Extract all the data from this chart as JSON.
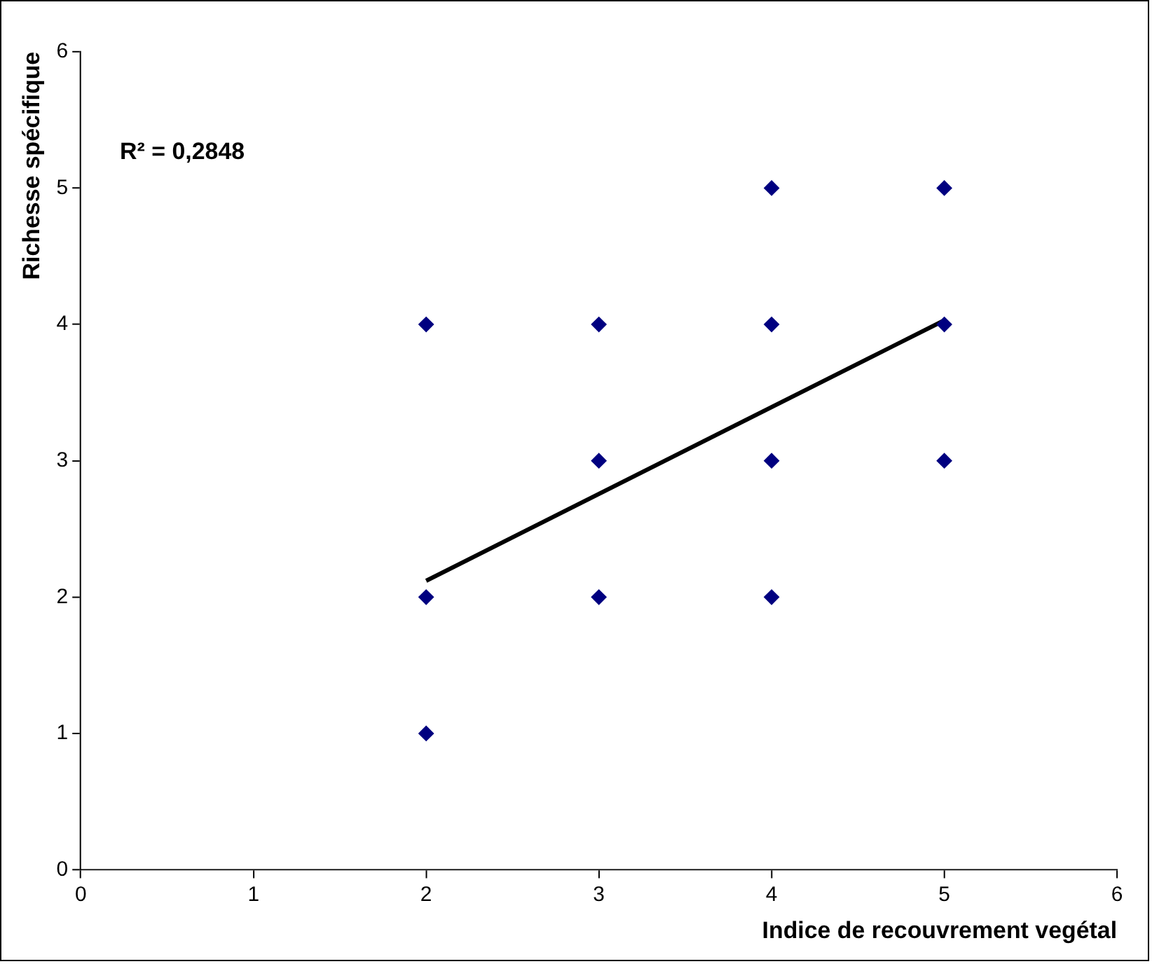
{
  "chart_data": {
    "type": "scatter",
    "xlabel": "Indice de recouvrement vegétal",
    "ylabel": "Richesse spécifique",
    "annotations": [
      "R² = 0,2848"
    ],
    "xlim": [
      0,
      6
    ],
    "xticks": [
      0,
      1,
      2,
      3,
      4,
      5,
      6
    ],
    "ylim": [
      0,
      6
    ],
    "yticks": [
      0,
      1,
      2,
      3,
      4,
      5,
      6
    ],
    "grid": false,
    "legend": false,
    "series": [
      {
        "type": "scatter",
        "marker": "diamond",
        "color": "#000080",
        "x": [
          2,
          2,
          2,
          3,
          3,
          3,
          4,
          4,
          4,
          4,
          5,
          5,
          5
        ],
        "values": [
          4,
          2,
          1,
          4,
          3,
          2,
          5,
          4,
          3,
          2,
          5,
          4,
          3
        ]
      },
      {
        "type": "line",
        "color": "#000000",
        "x": [
          2,
          5
        ],
        "values": [
          2.12,
          4.03
        ]
      }
    ]
  }
}
